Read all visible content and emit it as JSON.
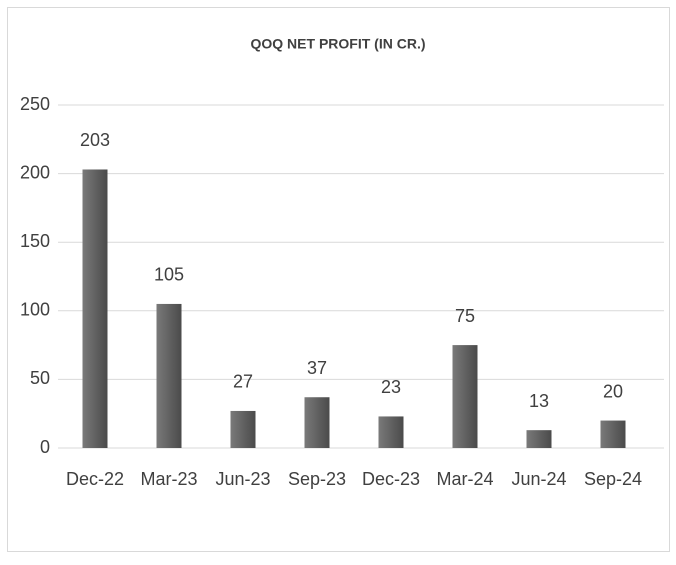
{
  "chart_data": {
    "type": "bar",
    "title": "QOQ NET PROFIT (IN CR.)",
    "categories": [
      "Dec-22",
      "Mar-23",
      "Jun-23",
      "Sep-23",
      "Dec-23",
      "Mar-24",
      "Jun-24",
      "Sep-24"
    ],
    "values": [
      203,
      105,
      27,
      37,
      23,
      75,
      13,
      20
    ],
    "color": "#5f5f5f",
    "ylim": [
      0,
      250
    ],
    "yticks": [
      0,
      50,
      100,
      150,
      200,
      250
    ],
    "grid": true
  }
}
